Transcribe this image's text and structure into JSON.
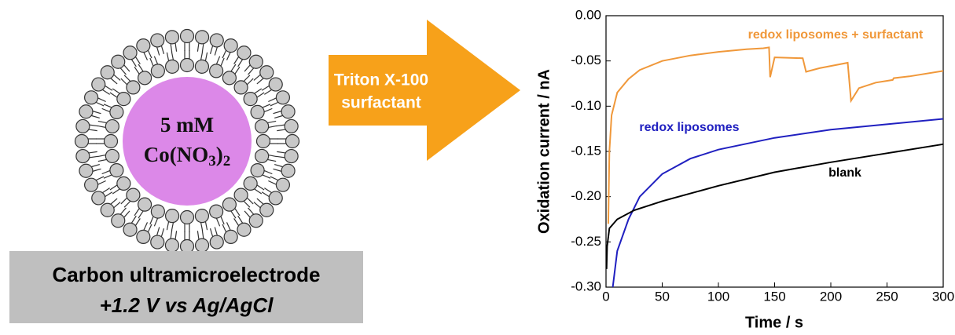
{
  "diagram": {
    "core_text": "5 mM",
    "core_formula": [
      "Co(NO",
      "3",
      ")",
      "2"
    ],
    "electrode_label": "Carbon ultramicroelectrode",
    "potential_label": "+1.2 V vs Ag/AgCl",
    "arrow_label": [
      "Triton X-100",
      "surfactant"
    ]
  },
  "chart_data": {
    "type": "line",
    "x_label": "Time / s",
    "y_label": "Oxidation current / nA",
    "xlim": [
      0,
      300
    ],
    "xticks": [
      0,
      50,
      100,
      150,
      200,
      250,
      300
    ],
    "ylim": [
      -0.3,
      0
    ],
    "yticks": [
      {
        "value": 0,
        "label": "0.00"
      },
      -0.05,
      {
        "value": -0.1,
        "label": "-0.10"
      },
      -0.15,
      {
        "value": -0.2,
        "label": "-0.20"
      },
      -0.25,
      {
        "value": -0.3,
        "label": "-0.30"
      }
    ],
    "series": [
      {
        "name": "redox liposomes + surfactant",
        "color": "#f0983a",
        "x": [
          2,
          3,
          5,
          10,
          20,
          30,
          50,
          75,
          100,
          125,
          140,
          145,
          146,
          150,
          175,
          178,
          190,
          215,
          218,
          225,
          240,
          255,
          256,
          270,
          300
        ],
        "values": [
          -0.23,
          -0.15,
          -0.11,
          -0.085,
          -0.07,
          -0.06,
          -0.05,
          -0.044,
          -0.04,
          -0.037,
          -0.036,
          -0.035,
          -0.068,
          -0.046,
          -0.047,
          -0.062,
          -0.058,
          -0.052,
          -0.094,
          -0.08,
          -0.074,
          -0.071,
          -0.069,
          -0.067,
          -0.061
        ]
      },
      {
        "name": "redox liposomes",
        "color": "#2020c0",
        "x": [
          6,
          10,
          20,
          30,
          50,
          75,
          100,
          150,
          200,
          250,
          300
        ],
        "values": [
          -0.3,
          -0.26,
          -0.225,
          -0.2,
          -0.175,
          -0.158,
          -0.148,
          -0.135,
          -0.126,
          -0.12,
          -0.114
        ]
      },
      {
        "name": "blank",
        "color": "#000000",
        "x": [
          0.5,
          1,
          3,
          10,
          25,
          50,
          100,
          150,
          200,
          250,
          300
        ],
        "values": [
          -0.28,
          -0.255,
          -0.235,
          -0.225,
          -0.215,
          -0.205,
          -0.188,
          -0.173,
          -0.162,
          -0.152,
          -0.142
        ]
      }
    ]
  }
}
